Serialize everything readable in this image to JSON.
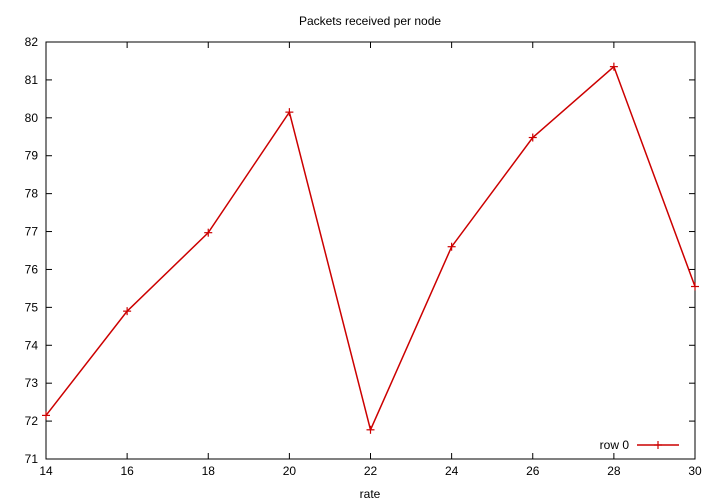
{
  "chart_data": {
    "type": "line",
    "title": "Packets received per node",
    "xlabel": "rate",
    "ylabel": "",
    "xlim": [
      14,
      30
    ],
    "ylim": [
      71,
      82
    ],
    "x_ticks": [
      14,
      16,
      18,
      20,
      22,
      24,
      26,
      28,
      30
    ],
    "y_ticks": [
      71,
      72,
      73,
      74,
      75,
      76,
      77,
      78,
      79,
      80,
      81,
      82
    ],
    "grid": false,
    "legend_position": "bottom-right",
    "series": [
      {
        "name": "row 0",
        "color": "#cc0000",
        "marker": "plus",
        "x": [
          14,
          16,
          18,
          20,
          22,
          24,
          26,
          28,
          30
        ],
        "y": [
          72.15,
          74.9,
          76.97,
          80.15,
          71.77,
          76.6,
          79.48,
          81.35,
          75.55
        ]
      }
    ]
  }
}
